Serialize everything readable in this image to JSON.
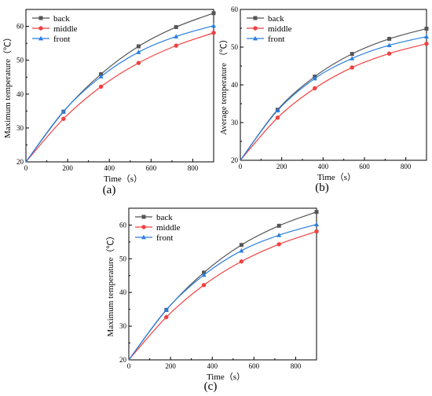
{
  "chart_data": [
    {
      "type": "line",
      "panel_label": "(a)",
      "xlabel": "Time（s）",
      "ylabel": "Maximum temperature（℃）",
      "xlim": [
        0,
        900
      ],
      "ylim": [
        20,
        65
      ],
      "xticks": [
        0,
        200,
        400,
        600,
        800
      ],
      "yticks": [
        20,
        30,
        40,
        50,
        60
      ],
      "legend_position": "top-left",
      "grid": false,
      "x": [
        0,
        180,
        360,
        540,
        720,
        900
      ],
      "series": [
        {
          "name": "back",
          "color": "#555555",
          "marker": "square",
          "values": [
            20,
            34.8,
            45.9,
            54.1,
            59.8,
            63.9
          ]
        },
        {
          "name": "middle",
          "color": "#f04040",
          "marker": "circle",
          "values": [
            20,
            32.7,
            42.2,
            49.2,
            54.3,
            58.1
          ]
        },
        {
          "name": "front",
          "color": "#2b7fe0",
          "marker": "triangle",
          "values": [
            20,
            34.9,
            45.2,
            52.4,
            57.0,
            60.2
          ]
        }
      ]
    },
    {
      "type": "line",
      "panel_label": "(b)",
      "xlabel": "Time（s）",
      "ylabel": "Average temperature （℃）",
      "xlim": [
        0,
        900
      ],
      "ylim": [
        20,
        60
      ],
      "xticks": [
        0,
        200,
        400,
        600,
        800
      ],
      "yticks": [
        20,
        30,
        40,
        50,
        60
      ],
      "legend_position": "top-left",
      "grid": false,
      "x": [
        0,
        180,
        360,
        540,
        720,
        900
      ],
      "series": [
        {
          "name": "back",
          "color": "#555555",
          "marker": "square",
          "values": [
            20,
            33.4,
            42.2,
            48.2,
            52.2,
            54.9
          ]
        },
        {
          "name": "middle",
          "color": "#f04040",
          "marker": "circle",
          "values": [
            20,
            31.3,
            39.1,
            44.6,
            48.3,
            50.9
          ]
        },
        {
          "name": "front",
          "color": "#2b7fe0",
          "marker": "triangle",
          "values": [
            20,
            33.2,
            41.7,
            47.0,
            50.5,
            52.8
          ]
        }
      ]
    },
    {
      "type": "line",
      "panel_label": "(c)",
      "xlabel": "Time（s）",
      "ylabel": "Maximum temperature（℃）",
      "xlim": [
        0,
        900
      ],
      "ylim": [
        20,
        65
      ],
      "xticks": [
        0,
        200,
        400,
        600,
        800
      ],
      "yticks": [
        20,
        30,
        40,
        50,
        60
      ],
      "legend_position": "top-left",
      "grid": false,
      "x": [
        0,
        180,
        360,
        540,
        720,
        900
      ],
      "series": [
        {
          "name": "back",
          "color": "#555555",
          "marker": "square",
          "values": [
            20,
            34.8,
            45.9,
            54.1,
            59.8,
            63.9
          ]
        },
        {
          "name": "middle",
          "color": "#f04040",
          "marker": "circle",
          "values": [
            20,
            32.7,
            42.2,
            49.2,
            54.3,
            58.1
          ]
        },
        {
          "name": "front",
          "color": "#2b7fe0",
          "marker": "triangle",
          "values": [
            20,
            34.9,
            45.2,
            52.4,
            57.0,
            60.2
          ]
        }
      ]
    }
  ]
}
